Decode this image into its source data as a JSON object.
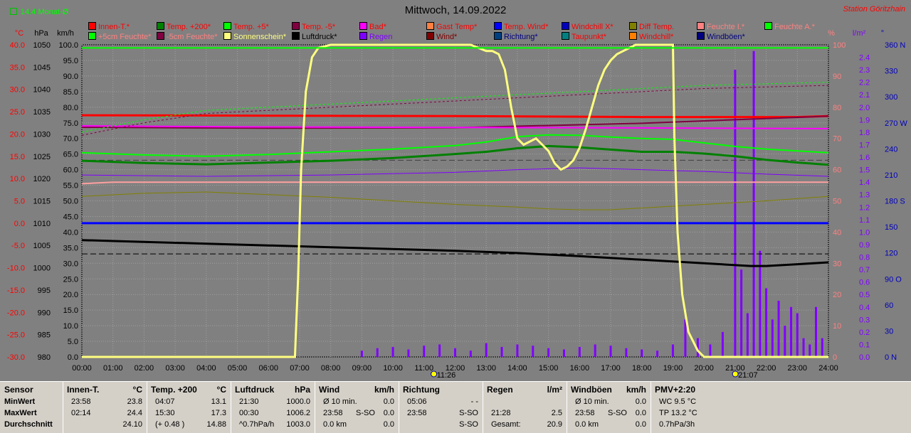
{
  "header": {
    "title": "Mittwoch, 14.09.2022",
    "station": "Station Göritzhain",
    "monat_label": "14.4 Monat-Ø"
  },
  "legend_rows": [
    [
      {
        "label": "Innen-T.*",
        "color": "#ff0000",
        "swatch": "#ff0000"
      },
      {
        "label": "Temp. +200*",
        "color": "#ff0000",
        "swatch": "#008000"
      },
      {
        "label": "Temp. +5*",
        "color": "#ff0000",
        "swatch": "#00ff00"
      },
      {
        "label": "Temp. -5*",
        "color": "#ff0000",
        "swatch": "#800040"
      },
      {
        "label": "Bad*",
        "color": "#ff0000",
        "swatch": "#ff00ff"
      },
      {
        "label": "Gast Temp*",
        "color": "#ff0000",
        "swatch": "#ff8040"
      },
      {
        "label": "Temp. Wind*",
        "color": "#ff0000",
        "swatch": "#0000ff"
      },
      {
        "label": "Windchill X*",
        "color": "#ff0000",
        "swatch": "#0000c0"
      },
      {
        "label": "Diff Temp.",
        "color": "#ff0000",
        "swatch": "#808000"
      },
      {
        "label": "Feuchte I.*",
        "color": "#ff8080",
        "swatch": "#ff8080"
      },
      {
        "label": "Feuchte A.*",
        "color": "#ff8080",
        "swatch": "#00ff00"
      }
    ],
    [
      {
        "label": "+5cm Feuchte*",
        "color": "#ff8080",
        "swatch": "#00ff00"
      },
      {
        "label": "-5cm Feuchte*",
        "color": "#ff8080",
        "swatch": "#800040"
      },
      {
        "label": "Sonnenschein*",
        "color": "#ffff80",
        "swatch": "#ffff80"
      },
      {
        "label": "Luftdruck*",
        "color": "#000000",
        "swatch": "#000000"
      },
      {
        "label": "Regen",
        "color": "#8000ff",
        "swatch": "#8000ff"
      },
      {
        "label": "Wind*",
        "color": "#800000",
        "swatch": "#800000"
      },
      {
        "label": "Richtung*",
        "color": "#000080",
        "swatch": "#004080"
      },
      {
        "label": "Taupunkt*",
        "color": "#ff0000",
        "swatch": "#008080"
      },
      {
        "label": "Windchill*",
        "color": "#ff0000",
        "swatch": "#ff8000"
      },
      {
        "label": "Windböen*",
        "color": "#000080",
        "swatch": "#000080"
      }
    ]
  ],
  "axes": {
    "left_heads": [
      "°C",
      "hPa",
      "km/h"
    ],
    "right_heads": [
      "%",
      "l/m²",
      "°"
    ],
    "temp_ticks": [
      "40.0",
      "35.0",
      "30.0",
      "25.0",
      "20.0",
      "15.0",
      "10.0",
      "5.0",
      "0.0",
      "-5.0",
      "-10.0",
      "-15.0",
      "-20.0",
      "-25.0",
      "-30.0"
    ],
    "hpa_ticks": [
      "1050",
      "1045",
      "1040",
      "1035",
      "1030",
      "1025",
      "1020",
      "1015",
      "1010",
      "1005",
      "1000",
      "995",
      "990",
      "985",
      "980"
    ],
    "kmh_ticks": [
      "100.0",
      "95.0",
      "90.0",
      "85.0",
      "80.0",
      "75.0",
      "70.0",
      "65.0",
      "60.0",
      "55.0",
      "50.0",
      "45.0",
      "40.0",
      "35.0",
      "30.0",
      "25.0",
      "20.0",
      "15.0",
      "10.0",
      "5.0",
      "0.0"
    ],
    "pct_ticks": [
      "100",
      "90",
      "80",
      "70",
      "60",
      "50",
      "40",
      "30",
      "20",
      "10",
      "0"
    ],
    "rain_ticks": [
      "2.4",
      "2.3",
      "2.2",
      "2.1",
      "2.0",
      "1.9",
      "1.8",
      "1.7",
      "1.6",
      "1.5",
      "1.4",
      "1.3",
      "1.2",
      "1.1",
      "1.0",
      "0.9",
      "0.8",
      "0.7",
      "0.6",
      "0.5",
      "0.4",
      "0.3",
      "0.2",
      "0.1",
      "0.0"
    ],
    "dir_ticks": [
      "360 N",
      "330",
      "300",
      "270 W",
      "240",
      "210",
      "180 S",
      "150",
      "120",
      "90 O",
      "60",
      "30",
      "0 N"
    ],
    "time_ticks": [
      "00:00",
      "01:00",
      "02:00",
      "03:00",
      "04:00",
      "05:00",
      "06:00",
      "07:00",
      "08:00",
      "09:00",
      "10:00",
      "11:00",
      "12:00",
      "13:00",
      "14:00",
      "15:00",
      "16:00",
      "17:00",
      "18:00",
      "19:00",
      "20:00",
      "21:00",
      "22:00",
      "23:00",
      "24:00"
    ],
    "sun_markers": [
      {
        "label": "11:26",
        "hour": 11.43
      },
      {
        "label": "21:07",
        "hour": 21.12
      }
    ]
  },
  "chart_data": {
    "type": "line",
    "x_unit": "hour",
    "xlim": [
      0,
      24
    ],
    "temp_ylim": [
      -30,
      40
    ],
    "pct_ylim": [
      0,
      100
    ],
    "hpa_ylim": [
      980,
      1050
    ],
    "rain_ylim": [
      0,
      2.5
    ],
    "series": [
      {
        "name": "Innen-T.*",
        "axis": "temp",
        "color": "#ff0000",
        "width": 3,
        "x": [
          0,
          6,
          12,
          18,
          23,
          24
        ],
        "y": [
          24.2,
          24.1,
          24.0,
          23.8,
          23.8,
          24.0
        ]
      },
      {
        "name": "Temp. +200*",
        "axis": "temp",
        "color": "#008000",
        "width": 3,
        "x": [
          0,
          2,
          4,
          6,
          8,
          10,
          12,
          13,
          14,
          15,
          16,
          17,
          18,
          19,
          20,
          21,
          22,
          23,
          24
        ],
        "y": [
          14.0,
          13.5,
          13.2,
          13.6,
          14.0,
          14.6,
          15.5,
          16.0,
          16.8,
          17.3,
          17.0,
          16.5,
          16.0,
          16.0,
          15.6,
          15.0,
          14.2,
          13.6,
          13.1
        ]
      },
      {
        "name": "Temp. +5*",
        "axis": "temp",
        "color": "#00ff00",
        "width": 2,
        "x": [
          0,
          2,
          4,
          6,
          8,
          10,
          12,
          13,
          14,
          15,
          16,
          17,
          18,
          19,
          20,
          21,
          22,
          23,
          24
        ],
        "y": [
          15.8,
          15.3,
          15.0,
          15.4,
          16.0,
          16.6,
          17.4,
          18.2,
          19.4,
          19.8,
          19.7,
          19.3,
          19.0,
          18.8,
          18.0,
          17.2,
          16.6,
          16.2,
          15.8
        ]
      },
      {
        "name": "Temp. -5*",
        "axis": "temp",
        "color": "#800040",
        "width": 2,
        "x": [
          0,
          6,
          12,
          18,
          24
        ],
        "y": [
          21.5,
          21.3,
          21.4,
          22.4,
          24.0
        ]
      },
      {
        "name": "Bad*",
        "axis": "temp",
        "color": "#ff00ff",
        "width": 2,
        "x": [
          0,
          5,
          10,
          16,
          24
        ],
        "y": [
          21.8,
          21.6,
          21.5,
          21.4,
          21.2
        ]
      },
      {
        "name": "Diff Temp.",
        "axis": "temp",
        "color": "#808000",
        "width": 1,
        "x": [
          0,
          2,
          4,
          6,
          8,
          10,
          12,
          14,
          15,
          16,
          17,
          18,
          20,
          22,
          24
        ],
        "y": [
          6.0,
          6.7,
          7.0,
          6.4,
          5.8,
          5.0,
          4.2,
          3.6,
          3.2,
          3.0,
          3.0,
          3.4,
          4.2,
          5.0,
          6.0
        ]
      },
      {
        "name": "Taupunkt*",
        "axis": "temp",
        "color": "#8000ff",
        "width": 1,
        "x": [
          0,
          4,
          8,
          12,
          14,
          16,
          18,
          20,
          22,
          24
        ],
        "y": [
          10.8,
          10.5,
          10.8,
          11.4,
          12.0,
          12.4,
          12.0,
          11.6,
          11.0,
          10.5
        ]
      },
      {
        "name": "Windchill X*",
        "axis": "temp",
        "color": "#0000ff",
        "width": 3,
        "x": [
          0,
          24
        ],
        "y": [
          0.0,
          0.0
        ]
      },
      {
        "name": "Luftdruck*",
        "axis": "hpa",
        "color": "#000000",
        "width": 3,
        "x": [
          0,
          2,
          4,
          6,
          8,
          10,
          12,
          14,
          16,
          18,
          20,
          21.5,
          22,
          23,
          24
        ],
        "y": [
          1006.2,
          1005.8,
          1005.4,
          1005.0,
          1004.6,
          1004.2,
          1003.8,
          1003.3,
          1002.6,
          1001.8,
          1001.0,
          1000.4,
          1000.4,
          1000.8,
          1001.2
        ]
      },
      {
        "name": "Feuchte I.*",
        "axis": "pct",
        "color": "#ffa0a0",
        "width": 2,
        "x": [
          0,
          1,
          24
        ],
        "y": [
          55.5,
          56.0,
          56.0
        ]
      },
      {
        "name": "Feuchte A.*",
        "axis": "pct",
        "color": "#00ff00",
        "width": 1,
        "dash": "3,3",
        "x": [
          0,
          2,
          4,
          6,
          8,
          10,
          12,
          14,
          16,
          18,
          20,
          22,
          24
        ],
        "y": [
          72,
          76,
          79,
          80,
          81,
          82,
          83,
          84,
          85,
          86,
          87,
          87.5,
          88
        ]
      },
      {
        "name": "-5cm Feuchte*",
        "axis": "pct",
        "color": "#800040",
        "width": 1,
        "dash": "3,3",
        "x": [
          0,
          2,
          4,
          6,
          8,
          10,
          12,
          14,
          16,
          18,
          20,
          22,
          24
        ],
        "y": [
          71,
          75,
          78,
          79,
          80,
          81,
          82,
          83,
          84,
          85,
          86,
          86.5,
          87
        ]
      },
      {
        "name": "Sonnenschein*",
        "axis": "pct",
        "color": "#ffff80",
        "width": 3,
        "x": [
          0,
          6.85,
          6.95,
          7.05,
          7.2,
          7.4,
          7.6,
          8.0,
          9,
          10,
          11,
          12,
          12.5,
          13,
          13.2,
          13.4,
          13.6,
          13.8,
          14.0,
          14.2,
          14.4,
          14.6,
          14.8,
          15.0,
          15.2,
          15.4,
          15.6,
          15.8,
          16.0,
          16.2,
          16.4,
          16.6,
          16.8,
          17.0,
          17.2,
          17.4,
          17.6,
          17.8,
          18.0,
          18.5,
          19.0,
          19.05,
          19.15,
          19.3,
          19.5,
          19.8,
          20.0,
          24
        ],
        "y": [
          0,
          0,
          25,
          60,
          85,
          96,
          99,
          100,
          100,
          100,
          100,
          100,
          100,
          98,
          98,
          97,
          92,
          80,
          70,
          68,
          69,
          70,
          68,
          66,
          62,
          60,
          61,
          63,
          67,
          73,
          80,
          87,
          92,
          95,
          97,
          98,
          99,
          100,
          100,
          100,
          100,
          70,
          40,
          20,
          8,
          2,
          0,
          0
        ]
      }
    ],
    "dashed_refs": [
      {
        "axis": "pct",
        "y": 63,
        "color": "#404040"
      },
      {
        "axis": "pct",
        "y": 33,
        "color": "#000000"
      }
    ],
    "rain": {
      "name": "Regen",
      "axis": "rain",
      "color": "#8000ff",
      "x": [
        9.0,
        9.5,
        10.0,
        10.5,
        11.0,
        11.5,
        12.0,
        12.5,
        13.0,
        13.5,
        14.0,
        14.5,
        15.0,
        15.5,
        16.0,
        16.5,
        17.0,
        17.5,
        18.0,
        18.5,
        19.0,
        19.4,
        19.8,
        20.2,
        20.6,
        21.0,
        21.2,
        21.4,
        21.6,
        21.8,
        22.0,
        22.2,
        22.4,
        22.6,
        22.8,
        23.0,
        23.2,
        23.4,
        23.6,
        23.8
      ],
      "y": [
        0.05,
        0.07,
        0.08,
        0.06,
        0.09,
        0.1,
        0.07,
        0.05,
        0.11,
        0.08,
        0.1,
        0.09,
        0.07,
        0.06,
        0.08,
        0.1,
        0.09,
        0.07,
        0.06,
        0.05,
        0.1,
        0.3,
        0.15,
        0.1,
        0.2,
        2.3,
        0.7,
        0.35,
        2.45,
        0.85,
        0.55,
        0.3,
        0.45,
        0.25,
        0.4,
        0.35,
        0.15,
        0.1,
        0.4,
        0.15
      ]
    }
  },
  "stats": {
    "columns": [
      {
        "title": "Sensor",
        "unit": "",
        "rows": [
          [
            "MinWert",
            "",
            ""
          ],
          [
            "MaxWert",
            "",
            ""
          ],
          [
            "Durchschnitt",
            "",
            ""
          ]
        ]
      },
      {
        "title": "Innen-T.",
        "unit": "°C",
        "rows": [
          [
            "23:58",
            "",
            "23.8"
          ],
          [
            "02:14",
            "",
            "24.4"
          ],
          [
            "",
            "",
            "24.10"
          ]
        ]
      },
      {
        "title": "Temp. +200",
        "unit": "°C",
        "rows": [
          [
            "04:07",
            "",
            "13.1"
          ],
          [
            "15:30",
            "",
            "17.3"
          ],
          [
            "(+ 0.48 )",
            "",
            "14.88"
          ]
        ]
      },
      {
        "title": "Luftdruck",
        "unit": "hPa",
        "rows": [
          [
            "21:30",
            "",
            "1000.0"
          ],
          [
            "00:30",
            "",
            "1006.2"
          ],
          [
            "^0.7hPa/h",
            "",
            "1003.0"
          ]
        ]
      },
      {
        "title": "Wind",
        "unit": "km/h",
        "rows": [
          [
            "Ø 10 min.",
            "",
            "0.0"
          ],
          [
            "23:58",
            "S-SO",
            "0.0"
          ],
          [
            "0.0 km",
            "",
            "0.0"
          ]
        ]
      },
      {
        "title": "Richtung",
        "unit": "",
        "rows": [
          [
            "05:06",
            "",
            "- -"
          ],
          [
            "23:58",
            "",
            "S-SO"
          ],
          [
            "",
            "",
            "S-SO"
          ]
        ]
      },
      {
        "title": "Regen",
        "unit": "l/m²",
        "rows": [
          [
            "",
            "",
            ""
          ],
          [
            "21:28",
            "",
            "2.5"
          ],
          [
            "Gesamt:",
            "",
            "20.9"
          ]
        ]
      },
      {
        "title": "Windböen",
        "unit": "km/h",
        "rows": [
          [
            "Ø 10 min.",
            "",
            "0.0"
          ],
          [
            "23:58",
            "S-SO",
            "0.0"
          ],
          [
            "0.0 km",
            "",
            "0.0"
          ]
        ]
      },
      {
        "title": "PMV+2:20",
        "unit": "",
        "rows": [
          [
            "WC 9.5 °C",
            "",
            ""
          ],
          [
            "TP 13.2 °C",
            "",
            ""
          ],
          [
            "0.7hPa/3h",
            "",
            ""
          ]
        ]
      }
    ]
  }
}
